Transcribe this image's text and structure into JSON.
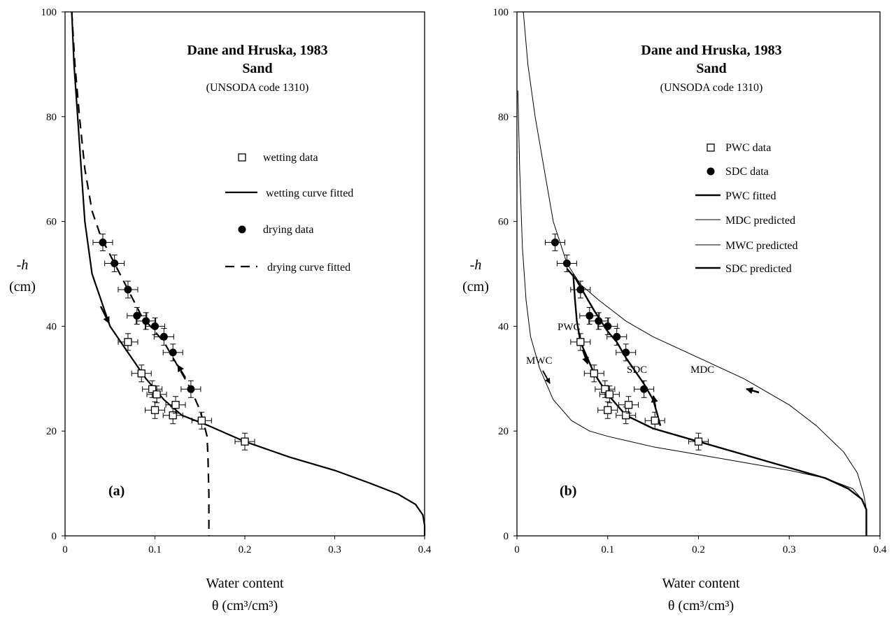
{
  "chart_data": [
    {
      "panel_label": "(a)",
      "type": "scatter",
      "title": "Dane and Hruska, 1983",
      "subtitle": "Sand",
      "note": "(UNSODA code 1310)",
      "xlabel_line1": "Water content",
      "xlabel_line2": "θ (cm³/cm³)",
      "ylabel_line1": "-h",
      "ylabel_line2": "(cm)",
      "xlim": [
        0,
        0.4
      ],
      "ylim": [
        0,
        100
      ],
      "xticks": [
        "0",
        "0.1",
        "0.2",
        "0.3",
        "0.4"
      ],
      "yticks": [
        "0",
        "20",
        "40",
        "60",
        "80",
        "100"
      ],
      "legend": [
        "wetting data",
        "wetting curve fitted",
        "drying data",
        "drying curve fitted"
      ],
      "series": [
        {
          "name": "wetting data",
          "kind": "open-square",
          "points": [
            [
              0.07,
              37
            ],
            [
              0.085,
              31
            ],
            [
              0.097,
              28
            ],
            [
              0.102,
              27
            ],
            [
              0.1,
              24
            ],
            [
              0.12,
              23
            ],
            [
              0.123,
              25
            ],
            [
              0.152,
              22
            ],
            [
              0.2,
              18
            ]
          ]
        },
        {
          "name": "drying data",
          "kind": "filled-circle",
          "points": [
            [
              0.042,
              56
            ],
            [
              0.055,
              52
            ],
            [
              0.07,
              47
            ],
            [
              0.08,
              42
            ],
            [
              0.09,
              41
            ],
            [
              0.1,
              40
            ],
            [
              0.11,
              38
            ],
            [
              0.12,
              35
            ],
            [
              0.14,
              28
            ]
          ]
        },
        {
          "name": "wetting curve fitted",
          "kind": "solid",
          "points": [
            [
              0.0075,
              100
            ],
            [
              0.01,
              90
            ],
            [
              0.014,
              80
            ],
            [
              0.018,
              70
            ],
            [
              0.022,
              60
            ],
            [
              0.03,
              50
            ],
            [
              0.04,
              45
            ],
            [
              0.05,
              40
            ],
            [
              0.07,
              35
            ],
            [
              0.09,
              30
            ],
            [
              0.11,
              26
            ],
            [
              0.13,
              23
            ],
            [
              0.16,
              21
            ],
            [
              0.2,
              18
            ],
            [
              0.25,
              15
            ],
            [
              0.3,
              12.5
            ],
            [
              0.34,
              10
            ],
            [
              0.37,
              8
            ],
            [
              0.39,
              6
            ],
            [
              0.398,
              4
            ],
            [
              0.4,
              2
            ],
            [
              0.4,
              0
            ]
          ]
        },
        {
          "name": "drying curve fitted",
          "kind": "dashed",
          "points": [
            [
              0.0075,
              100
            ],
            [
              0.011,
              90
            ],
            [
              0.016,
              80
            ],
            [
              0.022,
              70
            ],
            [
              0.03,
              62
            ],
            [
              0.04,
              57
            ],
            [
              0.055,
              52
            ],
            [
              0.07,
              47
            ],
            [
              0.085,
              42
            ],
            [
              0.1,
              39
            ],
            [
              0.11,
              37
            ],
            [
              0.12,
              34
            ],
            [
              0.13,
              31
            ],
            [
              0.14,
              28
            ],
            [
              0.15,
              24
            ],
            [
              0.155,
              21
            ],
            [
              0.158,
              19
            ],
            [
              0.159,
              15
            ],
            [
              0.16,
              8
            ],
            [
              0.16,
              0
            ]
          ]
        }
      ]
    },
    {
      "panel_label": "(b)",
      "type": "scatter",
      "title": "Dane and Hruska, 1983",
      "subtitle": "Sand",
      "note": "(UNSODA code 1310)",
      "xlabel_line1": "Water content",
      "xlabel_line2": "θ (cm³/cm³)",
      "ylabel_line1": "-h",
      "ylabel_line2": "(cm)",
      "xlim": [
        0,
        0.4
      ],
      "ylim": [
        0,
        100
      ],
      "xticks": [
        "0",
        "0.1",
        "0.2",
        "0.3",
        "0.4"
      ],
      "yticks": [
        "0",
        "20",
        "40",
        "60",
        "80",
        "100"
      ],
      "legend": [
        "PWC  data",
        "SDC  data",
        "PWC  fitted",
        "MDC  predicted",
        "MWC predicted",
        "SDC  predicted"
      ],
      "annotations": [
        "PWC",
        "SDC",
        "MDC",
        "MWC"
      ],
      "series": [
        {
          "name": "PWC  data",
          "kind": "open-square",
          "points": [
            [
              0.07,
              37
            ],
            [
              0.085,
              31
            ],
            [
              0.097,
              28
            ],
            [
              0.102,
              27
            ],
            [
              0.1,
              24
            ],
            [
              0.12,
              23
            ],
            [
              0.123,
              25
            ],
            [
              0.152,
              22
            ],
            [
              0.2,
              18
            ]
          ]
        },
        {
          "name": "SDC  data",
          "kind": "filled-circle",
          "points": [
            [
              0.042,
              56
            ],
            [
              0.055,
              52
            ],
            [
              0.07,
              47
            ],
            [
              0.08,
              42
            ],
            [
              0.09,
              41
            ],
            [
              0.1,
              40
            ],
            [
              0.11,
              38
            ],
            [
              0.12,
              35
            ],
            [
              0.14,
              28
            ]
          ]
        },
        {
          "name": "PWC  fitted",
          "kind": "thick",
          "points": [
            [
              0.062,
              50
            ],
            [
              0.064,
              45
            ],
            [
              0.066,
              41
            ],
            [
              0.07,
              37
            ],
            [
              0.085,
              31
            ],
            [
              0.1,
              27
            ],
            [
              0.12,
              23
            ],
            [
              0.15,
              20.5
            ],
            [
              0.2,
              18
            ],
            [
              0.25,
              15.5
            ],
            [
              0.3,
              13
            ],
            [
              0.34,
              11
            ],
            [
              0.365,
              9
            ],
            [
              0.38,
              7
            ],
            [
              0.385,
              5
            ],
            [
              0.385,
              0
            ]
          ]
        },
        {
          "name": "MDC  predicted",
          "kind": "thin",
          "points": [
            [
              0.007,
              100
            ],
            [
              0.012,
              90
            ],
            [
              0.02,
              80
            ],
            [
              0.03,
              70
            ],
            [
              0.04,
              60
            ],
            [
              0.055,
              52
            ],
            [
              0.07,
              48
            ],
            [
              0.09,
              45
            ],
            [
              0.12,
              41
            ],
            [
              0.15,
              38
            ],
            [
              0.2,
              34
            ],
            [
              0.25,
              30
            ],
            [
              0.3,
              25
            ],
            [
              0.33,
              21
            ],
            [
              0.36,
              16
            ],
            [
              0.375,
              12
            ],
            [
              0.382,
              8
            ],
            [
              0.385,
              5
            ],
            [
              0.385,
              0
            ]
          ]
        },
        {
          "name": "MWC predicted",
          "kind": "thin",
          "points": [
            [
              0.001,
              85
            ],
            [
              0.003,
              70
            ],
            [
              0.006,
              55
            ],
            [
              0.01,
              45
            ],
            [
              0.015,
              38
            ],
            [
              0.025,
              32
            ],
            [
              0.04,
              26
            ],
            [
              0.06,
              22
            ],
            [
              0.08,
              20
            ],
            [
              0.1,
              19
            ],
            [
              0.15,
              17
            ],
            [
              0.2,
              15.5
            ],
            [
              0.25,
              14
            ],
            [
              0.3,
              12.5
            ],
            [
              0.34,
              11
            ],
            [
              0.37,
              9
            ],
            [
              0.38,
              7
            ],
            [
              0.385,
              5
            ],
            [
              0.385,
              0
            ]
          ]
        },
        {
          "name": "SDC  predicted",
          "kind": "thick",
          "points": [
            [
              0.055,
              51
            ],
            [
              0.065,
              49
            ],
            [
              0.075,
              46
            ],
            [
              0.085,
              43
            ],
            [
              0.1,
              39
            ],
            [
              0.11,
              37
            ],
            [
              0.12,
              34
            ],
            [
              0.14,
              29
            ],
            [
              0.15,
              26
            ],
            [
              0.155,
              23
            ],
            [
              0.158,
              21
            ]
          ]
        }
      ]
    }
  ]
}
